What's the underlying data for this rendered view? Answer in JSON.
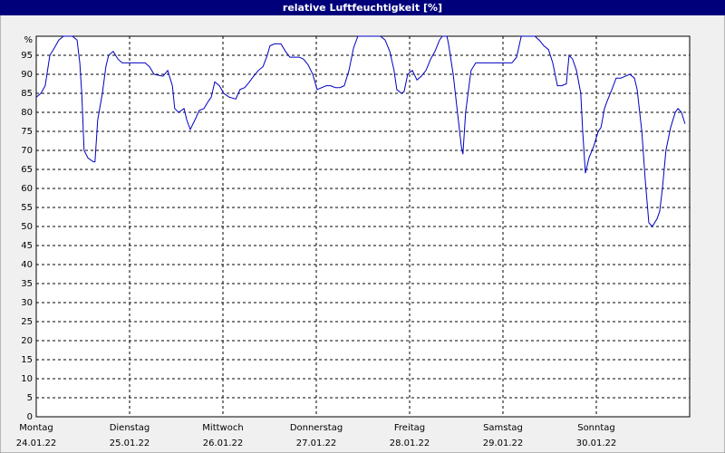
{
  "chart_data": {
    "type": "line",
    "title": "relative Luftfeuchtigkeit [%]",
    "xlim": [
      0,
      168
    ],
    "ylim": [
      0,
      100
    ],
    "yticks": [
      0,
      5,
      10,
      15,
      20,
      25,
      30,
      35,
      40,
      45,
      50,
      55,
      60,
      65,
      70,
      75,
      80,
      85,
      90,
      95,
      {
        "value": 100,
        "label": "%"
      }
    ],
    "xticks": [
      {
        "value": 0,
        "label": "Montag"
      },
      {
        "value": 24,
        "label": "Dienstag"
      },
      {
        "value": 48,
        "label": "Mittwoch"
      },
      {
        "value": 72,
        "label": "Donnerstag"
      },
      {
        "value": 96,
        "label": "Freitag"
      },
      {
        "value": 120,
        "label": "Samstag"
      },
      {
        "value": 144,
        "label": "Sonntag"
      }
    ],
    "xtick_dates": [
      "24.01.22",
      "25.01.22",
      "26.01.22",
      "27.01.22",
      "28.01.22",
      "29.01.22",
      "30.01.22"
    ],
    "grid": true,
    "series": [
      {
        "color": "#0000c0",
        "x": [
          0,
          1.2,
          2.3,
          3.5,
          4.7,
          5.8,
          7.0,
          9.3,
          10.5,
          11.2,
          11.7,
          12.3,
          13.3,
          14.7,
          15.1,
          15.8,
          17.0,
          17.9,
          18.6,
          19.8,
          21.0,
          22.1,
          24.5,
          28.0,
          29.1,
          30.3,
          32.6,
          33.8,
          35.0,
          35.6,
          36.6,
          38.0,
          38.7,
          39.6,
          40.8,
          41.9,
          43.1,
          44.3,
          45.0,
          45.9,
          47.1,
          48.2,
          49.6,
          51.3,
          52.4,
          53.6,
          54.8,
          55.9,
          57.1,
          58.3,
          59.4,
          60.1,
          61.3,
          62.9,
          64.1,
          65.2,
          66.4,
          67.6,
          68.7,
          69.9,
          71.1,
          72.2,
          73.4,
          74.6,
          75.7,
          76.9,
          78.1,
          79.2,
          80.4,
          81.6,
          82.7,
          83.9,
          88.5,
          89.7,
          90.9,
          92.0,
          92.7,
          93.9,
          94.6,
          95.5,
          96.7,
          97.9,
          99.0,
          100.2,
          101.4,
          102.5,
          103.7,
          104.4,
          105.6,
          106.0,
          107.2,
          108.3,
          109.3,
          109.7,
          110.4,
          111.4,
          111.8,
          113.0,
          116.5,
          120.0,
          122.3,
          123.5,
          124.7,
          128.2,
          129.3,
          130.5,
          131.7,
          132.8,
          134.0,
          135.1,
          136.3,
          137.0,
          137.9,
          138.9,
          140.0,
          140.5,
          141.2,
          142.1,
          143.3,
          144.5,
          145.2,
          146.1,
          146.8,
          148.0,
          149.1,
          150.3,
          151.5,
          152.6,
          153.8,
          154.5,
          155.7,
          156.6,
          157.5,
          158.4,
          159.6,
          160.3,
          161.0,
          161.9,
          163.1,
          164.3,
          165.0,
          165.9,
          166.8
        ],
        "values": [
          84,
          85,
          87,
          95,
          97,
          99,
          100,
          100,
          99,
          93,
          85,
          70,
          68,
          67,
          67,
          78,
          85,
          92,
          95,
          96,
          94,
          93,
          93,
          93,
          92,
          90,
          89.5,
          91,
          87,
          81,
          80,
          81,
          78,
          75.5,
          78,
          80.5,
          81,
          83,
          84,
          88,
          87,
          85,
          84,
          83.5,
          86,
          86.5,
          88,
          89.5,
          91,
          92,
          95,
          97.5,
          98,
          98,
          96,
          94.5,
          94.5,
          94.5,
          94,
          92.5,
          90,
          86,
          86.5,
          87,
          87,
          86.5,
          86.5,
          87,
          91,
          97,
          100,
          100,
          100,
          99,
          96,
          91,
          86,
          85,
          85.5,
          90,
          91,
          88.5,
          89.5,
          91,
          94,
          96,
          99,
          100,
          100,
          98,
          90,
          80,
          71,
          69,
          80,
          88,
          91,
          93,
          93,
          93,
          93,
          94.5,
          100,
          100,
          99,
          97.5,
          96.5,
          93,
          87,
          87,
          87.5,
          95,
          94,
          91,
          85,
          75,
          64,
          68,
          71,
          75,
          76,
          81,
          83,
          86,
          89,
          89,
          89.5,
          90,
          89,
          86,
          75,
          62,
          51,
          50,
          52,
          54,
          60,
          70,
          76,
          80,
          81,
          80,
          77
        ]
      }
    ]
  }
}
